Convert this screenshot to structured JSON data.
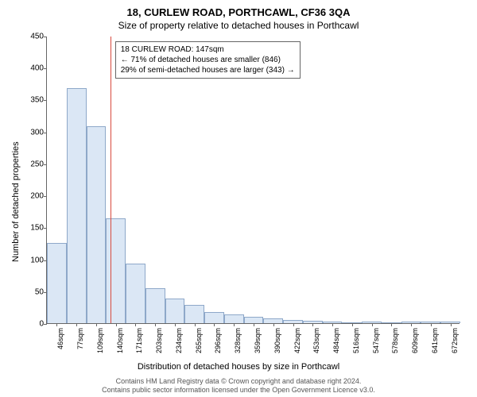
{
  "title": "18, CURLEW ROAD, PORTHCAWL, CF36 3QA",
  "subtitle": "Size of property relative to detached houses in Porthcawl",
  "y_axis_label": "Number of detached properties",
  "x_axis_label": "Distribution of detached houses by size in Porthcawl",
  "footer1": "Contains HM Land Registry data © Crown copyright and database right 2024.",
  "footer2": "Contains public sector information licensed under the Open Government Licence v3.0.",
  "chart": {
    "type": "histogram",
    "background_color": "#ffffff",
    "bar_fill": "#dbe7f5",
    "bar_stroke": "#8ea8c9",
    "ref_line_color": "#d84a3e",
    "axis_color": "#666666",
    "text_color": "#000000",
    "ylim": [
      0,
      450
    ],
    "ytick_step": 50,
    "yticks": [
      0,
      50,
      100,
      150,
      200,
      250,
      300,
      350,
      400,
      450
    ],
    "x_tick_labels": [
      "46sqm",
      "77sqm",
      "109sqm",
      "140sqm",
      "171sqm",
      "203sqm",
      "234sqm",
      "265sqm",
      "296sqm",
      "328sqm",
      "359sqm",
      "390sqm",
      "422sqm",
      "453sqm",
      "484sqm",
      "516sqm",
      "547sqm",
      "578sqm",
      "609sqm",
      "641sqm",
      "672sqm"
    ],
    "values": [
      125,
      368,
      308,
      164,
      93,
      55,
      38,
      28,
      18,
      14,
      10,
      8,
      5,
      4,
      2,
      0,
      2,
      0,
      2,
      2,
      2
    ],
    "reference_index": 3,
    "bar_width_ratio": 1.0,
    "label_fontsize": 11,
    "tick_fontsize": 10,
    "title_fontsize": 13
  },
  "annotation": {
    "line1": "18 CURLEW ROAD: 147sqm",
    "line2": "← 71% of detached houses are smaller (846)",
    "line3": "29% of semi-detached houses are larger (343) →",
    "box_border": "#666666",
    "box_bg": "#ffffff"
  }
}
